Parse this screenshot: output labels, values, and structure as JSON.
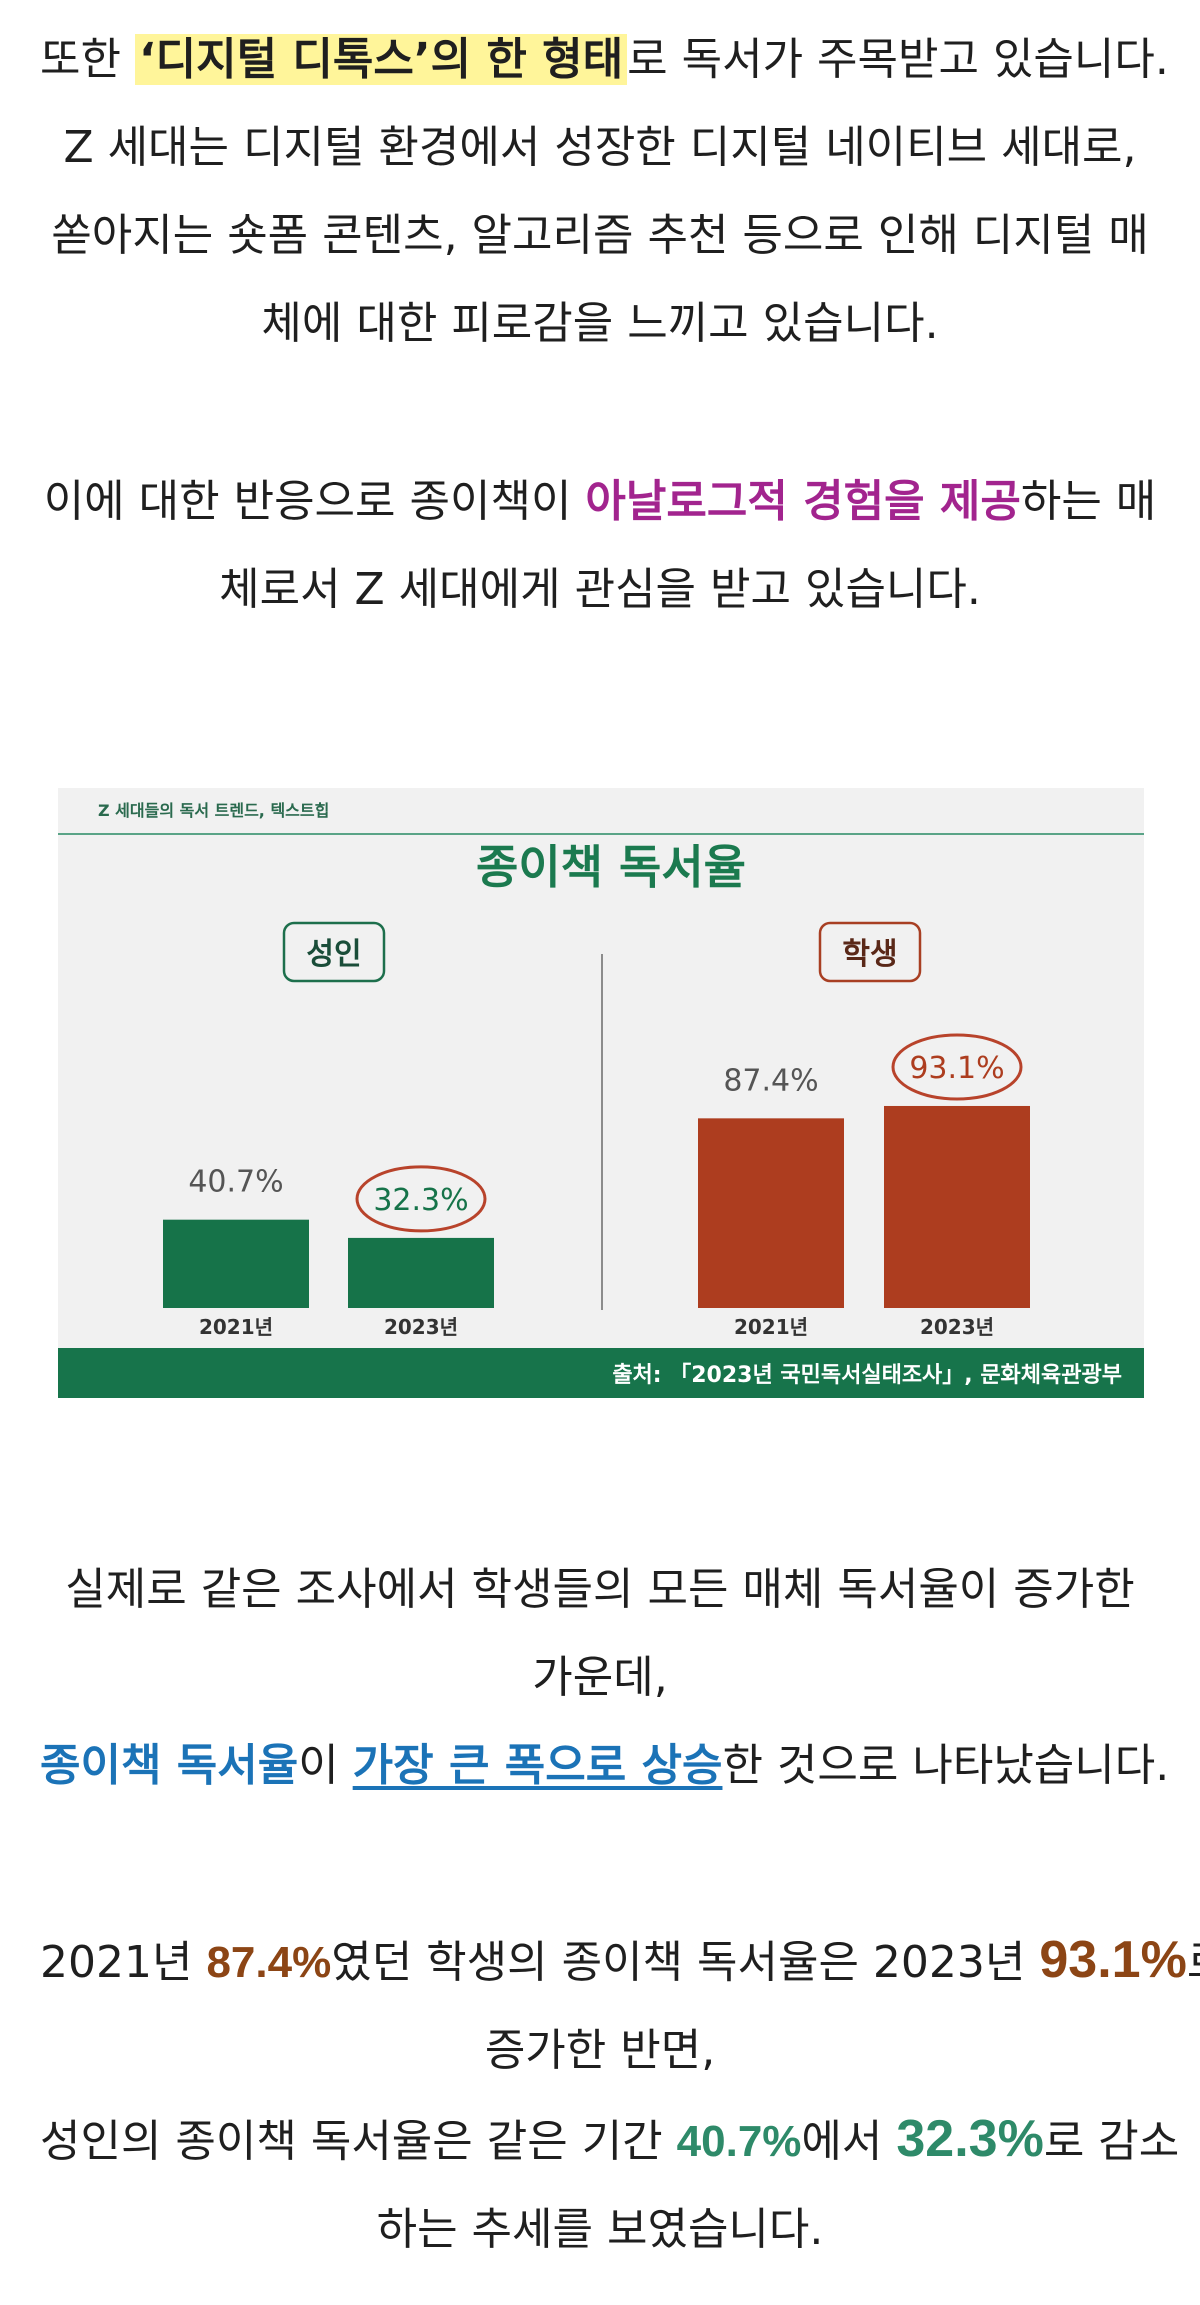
{
  "para1": {
    "l1_a": "또한 ",
    "l1_hl": "‘디지털 디톡스’의 한 형태",
    "l1_b": "로 독서가 주목받고 있습니다.",
    "l2": "Z 세대는 디지털 환경에서 성장한 디지털 네이티브 세대로,",
    "l3": "쏟아지는 숏폼 콘텐츠, 알고리즘 추천 등으로 인해 디지털 매",
    "l4": "체에 대한 피로감을 느끼고 있습니다."
  },
  "para2": {
    "l1_a": "이에 대한 반응으로 종이책이 ",
    "l1_hl": "아날로그적 경험을 제공",
    "l1_b": "하는 매",
    "l2": "체로서 Z 세대에게 관심을 받고 있습니다."
  },
  "chart_data": {
    "type": "bar",
    "header_label": "Z 세대들의 독서 트렌드, 텍스트힙",
    "title": "종이책 독서율",
    "source": "출처: 「2023년 국민독서실태조사」, 문화체육관광부",
    "categories": [
      "2021년",
      "2023년"
    ],
    "unit": "%",
    "panels": [
      {
        "name": "성인",
        "color": "#167349",
        "values": [
          40.7,
          32.3
        ],
        "labels": [
          "40.7%",
          "32.3%"
        ],
        "highlight_index": 1
      },
      {
        "name": "학생",
        "color": "#ad3d1f",
        "values": [
          87.4,
          93.1
        ],
        "labels": [
          "87.4%",
          "93.1%"
        ],
        "highlight_index": 1
      }
    ],
    "ylim": [
      0,
      100
    ],
    "colors": {
      "green": "#167349",
      "red": "#ad3d1f",
      "circle": "#b8432b",
      "footer": "#17744b",
      "background": "#f1f1f1"
    }
  },
  "para3": {
    "l1": "실제로 같은 조사에서 학생들의 모든 매체 독서율이 증가한",
    "l2": "가운데,",
    "l3_blue": "종이책 독서율",
    "l3_a": "이 ",
    "l3_u": "가장 큰 폭으로 상승",
    "l3_b": "한 것으로 나타났습니다."
  },
  "para4": {
    "l1_a": "2021년 ",
    "l1_v1": "87.4%",
    "l1_b": "였던 학생의 종이책 독서율은 2023년 ",
    "l1_v2": "93.1%",
    "l1_c": "로",
    "l2": "증가한 반면,",
    "l3_a": "성인의 종이책 독서율은 같은 기간 ",
    "l3_v1": "40.7%",
    "l3_b": "에서 ",
    "l3_v2": "32.3%",
    "l3_c": "로 감소",
    "l4": "하는 추세를 보였습니다."
  }
}
